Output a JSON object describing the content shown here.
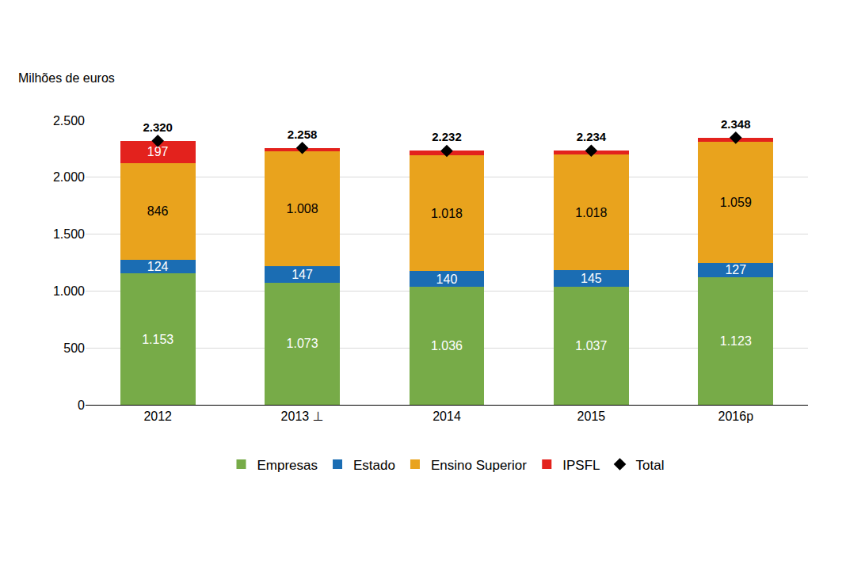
{
  "chart_data": {
    "type": "bar",
    "stacked": true,
    "data_labels": true,
    "grid": true,
    "legend": "bottom",
    "ylabel": "Milhões de euros",
    "categories": [
      "2012",
      "2013 ⊥",
      "2014",
      "2015",
      "2016p"
    ],
    "ylim": [
      0,
      2500
    ],
    "yticks": [
      0,
      500,
      {
        "value": 1000,
        "label": "1.000"
      },
      {
        "value": 1500,
        "label": "1.500"
      },
      {
        "value": 2000,
        "label": "2.000"
      },
      {
        "value": 2500,
        "label": "2.500"
      }
    ],
    "series": [
      {
        "name": "Empresas",
        "color": "#77ab48",
        "values": [
          1153,
          1073,
          1036,
          1037,
          1123
        ],
        "value_labels": [
          "1.153",
          "1.073",
          "1.036",
          "1.037",
          "1.123"
        ]
      },
      {
        "name": "Estado",
        "color": "#1b6db3",
        "values": [
          124,
          147,
          140,
          145,
          127
        ],
        "value_labels": [
          "124",
          "147",
          "140",
          "145",
          "127"
        ]
      },
      {
        "name": "Ensino Superior",
        "color": "#e9a31d",
        "values": [
          846,
          1008,
          1018,
          1018,
          1059
        ],
        "value_labels": [
          "846",
          "1.008",
          "1.018",
          "1.018",
          "1.059"
        ]
      },
      {
        "name": "IPSFL",
        "color": "#e3221d",
        "values": [
          197,
          30,
          38,
          34,
          39
        ],
        "value_labels": [
          "197",
          null,
          null,
          null,
          null
        ]
      },
      {
        "name": "Total",
        "type": "scatter",
        "marker": "diamond",
        "color": "#000000",
        "values": [
          2320,
          2258,
          2232,
          2234,
          2348
        ],
        "value_labels": [
          "2.320",
          "2.258",
          "2.232",
          "2.234",
          "2.348"
        ]
      }
    ]
  }
}
